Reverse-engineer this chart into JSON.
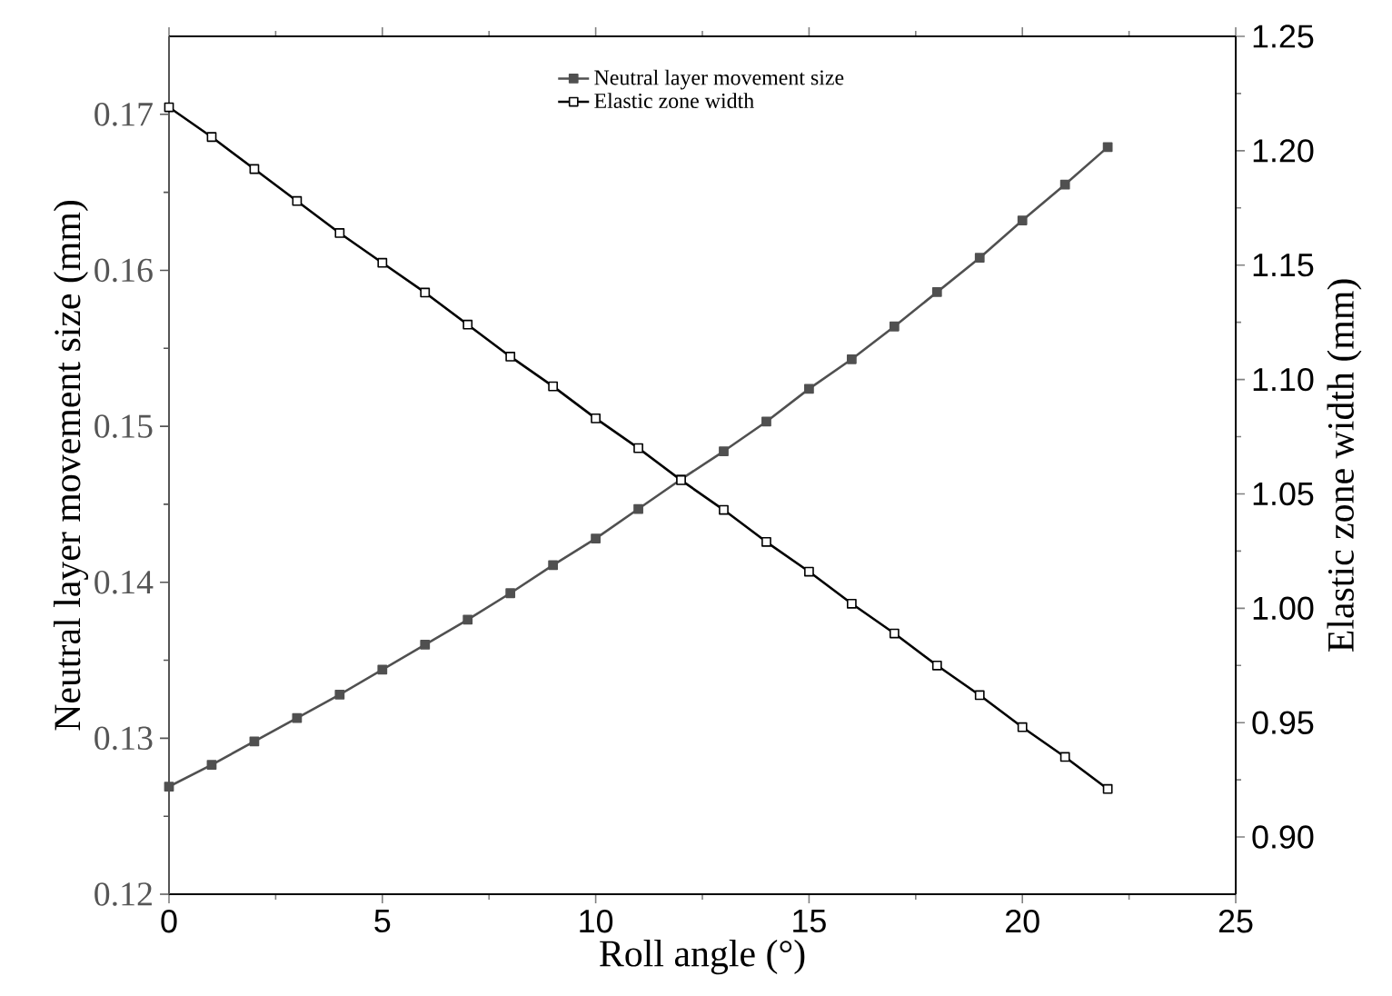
{
  "chart_data": {
    "type": "line",
    "xlabel": "Roll angle (°)",
    "ylabel": "Neutral layer movement size (mm)",
    "y2label": "Elastic zone width (mm)",
    "x": [
      0,
      1,
      2,
      3,
      4,
      5,
      6,
      7,
      8,
      9,
      10,
      11,
      12,
      13,
      14,
      15,
      16,
      17,
      18,
      19,
      20,
      21,
      22
    ],
    "series": [
      {
        "name": "Neutral layer movement size",
        "color": "#505050",
        "values": [
          0.1269,
          0.1283,
          0.1298,
          0.1313,
          0.1328,
          0.1344,
          0.136,
          0.1376,
          0.1393,
          0.1411,
          0.1428,
          0.1447,
          0.1466,
          0.1484,
          0.1503,
          0.1524,
          0.1543,
          0.1564,
          0.1586,
          0.1608,
          0.1632,
          0.1655,
          0.1679
        ]
      },
      {
        "name": "Elastic zone width",
        "color": "#000000",
        "axis": "y2",
        "values": [
          1.219,
          1.206,
          1.192,
          1.178,
          1.164,
          1.151,
          1.138,
          1.124,
          1.11,
          1.097,
          1.083,
          1.07,
          1.056,
          1.043,
          1.029,
          1.016,
          1.002,
          0.989,
          0.975,
          0.962,
          0.948,
          0.935,
          0.921
        ]
      }
    ],
    "xlim": [
      0,
      25
    ],
    "xticks": [
      0,
      5,
      10,
      15,
      20,
      25
    ],
    "ylim": [
      0.12,
      0.175
    ],
    "yticks": [
      0.12,
      0.13,
      0.14,
      0.15,
      0.16,
      0.17
    ],
    "y2lim": [
      0.875,
      1.25
    ],
    "y2ticks": [
      {
        "value": 0.9,
        "label": "0.90"
      },
      {
        "value": 0.95,
        "label": "0.95"
      },
      {
        "value": 1.0,
        "label": "1.00"
      },
      {
        "value": 1.05,
        "label": "1.05"
      },
      {
        "value": 1.1,
        "label": "1.10"
      },
      {
        "value": 1.15,
        "label": "1.15"
      },
      {
        "value": 1.2,
        "label": "1.20"
      },
      {
        "value": 1.25,
        "label": "1.25"
      }
    ],
    "grid": false,
    "legend": "top",
    "marker": "square",
    "line_style": "solid"
  }
}
